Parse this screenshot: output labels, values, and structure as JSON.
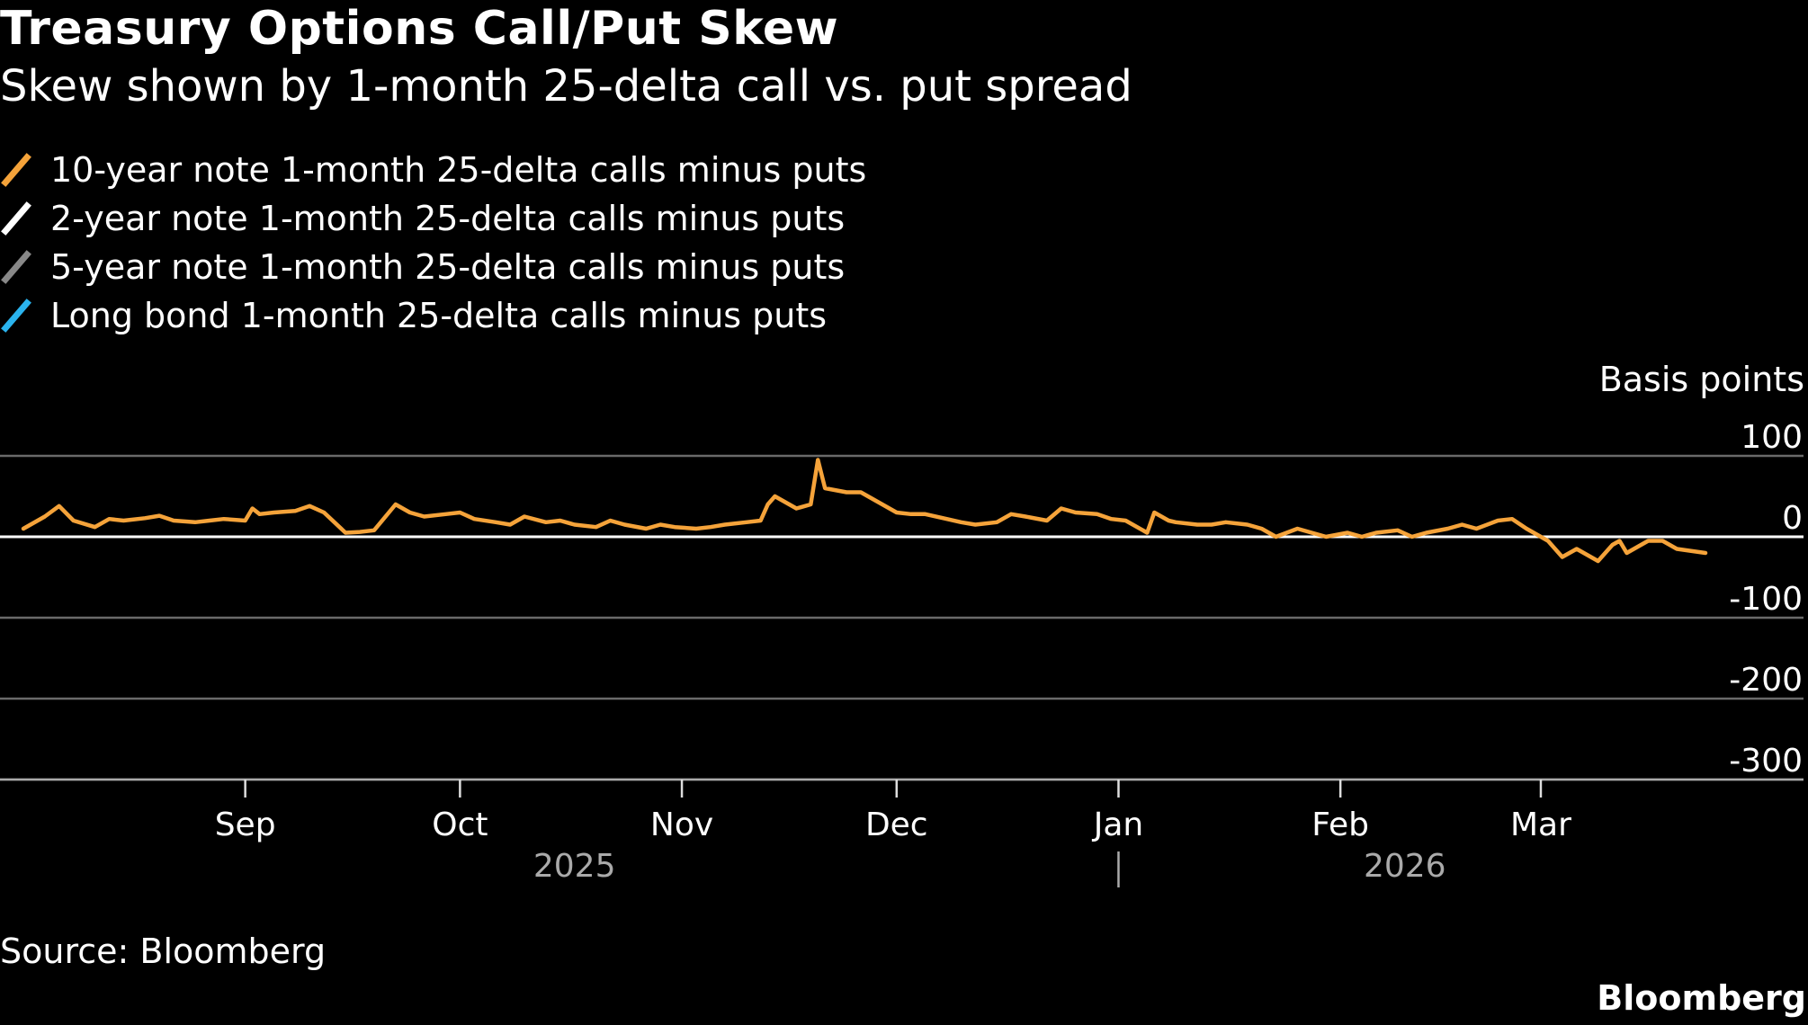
{
  "title": "Treasury Options Call/Put Skew",
  "subtitle": "Skew shown by 1-month 25-delta call vs. put spread",
  "source": "Source: Bloomberg",
  "brand": "Bloomberg",
  "chart_data": {
    "type": "line",
    "ylabel": "Basis points",
    "ylim": [
      -300,
      100
    ],
    "yticks": [
      100,
      0,
      -100,
      -200,
      -300
    ],
    "grid": true,
    "legend": "top-left",
    "x_start": "2025-07-31",
    "x_end": "2026-03-24",
    "month_ticks": [
      {
        "label": "Sep",
        "date": "2025-09-01"
      },
      {
        "label": "Oct",
        "date": "2025-10-01"
      },
      {
        "label": "Nov",
        "date": "2025-11-01"
      },
      {
        "label": "Dec",
        "date": "2025-12-01"
      },
      {
        "label": "Jan",
        "date": "2026-01-01"
      },
      {
        "label": "Feb",
        "date": "2026-02-01"
      },
      {
        "label": "Mar",
        "date": "2026-03-01"
      }
    ],
    "year_labels": [
      {
        "label": "2025",
        "date": "2025-10-17"
      },
      {
        "label": "2026",
        "date": "2026-02-10"
      }
    ],
    "year_divider_date": "2026-01-01",
    "series": [
      {
        "name": "10-year note 1-month 25-delta calls minus puts",
        "color": "#f5a33a",
        "points": [
          [
            "2025-08-01",
            10
          ],
          [
            "2025-08-04",
            25
          ],
          [
            "2025-08-06",
            38
          ],
          [
            "2025-08-08",
            20
          ],
          [
            "2025-08-11",
            12
          ],
          [
            "2025-08-13",
            22
          ],
          [
            "2025-08-15",
            20
          ],
          [
            "2025-08-18",
            23
          ],
          [
            "2025-08-20",
            26
          ],
          [
            "2025-08-22",
            20
          ],
          [
            "2025-08-25",
            18
          ],
          [
            "2025-08-27",
            20
          ],
          [
            "2025-08-29",
            22
          ],
          [
            "2025-09-01",
            20
          ],
          [
            "2025-09-02",
            35
          ],
          [
            "2025-09-03",
            28
          ],
          [
            "2025-09-05",
            30
          ],
          [
            "2025-09-08",
            32
          ],
          [
            "2025-09-10",
            38
          ],
          [
            "2025-09-12",
            30
          ],
          [
            "2025-09-15",
            5
          ],
          [
            "2025-09-17",
            6
          ],
          [
            "2025-09-19",
            8
          ],
          [
            "2025-09-22",
            40
          ],
          [
            "2025-09-24",
            30
          ],
          [
            "2025-09-26",
            25
          ],
          [
            "2025-09-29",
            28
          ],
          [
            "2025-10-01",
            30
          ],
          [
            "2025-10-03",
            22
          ],
          [
            "2025-10-06",
            18
          ],
          [
            "2025-10-08",
            15
          ],
          [
            "2025-10-10",
            25
          ],
          [
            "2025-10-13",
            18
          ],
          [
            "2025-10-15",
            20
          ],
          [
            "2025-10-17",
            15
          ],
          [
            "2025-10-20",
            12
          ],
          [
            "2025-10-22",
            20
          ],
          [
            "2025-10-24",
            15
          ],
          [
            "2025-10-27",
            10
          ],
          [
            "2025-10-29",
            15
          ],
          [
            "2025-10-31",
            12
          ],
          [
            "2025-11-03",
            10
          ],
          [
            "2025-11-05",
            12
          ],
          [
            "2025-11-07",
            15
          ],
          [
            "2025-11-10",
            18
          ],
          [
            "2025-11-12",
            20
          ],
          [
            "2025-11-13",
            40
          ],
          [
            "2025-11-14",
            50
          ],
          [
            "2025-11-17",
            35
          ],
          [
            "2025-11-19",
            40
          ],
          [
            "2025-11-20",
            95
          ],
          [
            "2025-11-21",
            60
          ],
          [
            "2025-11-24",
            55
          ],
          [
            "2025-11-26",
            55
          ],
          [
            "2025-11-28",
            45
          ],
          [
            "2025-12-01",
            30
          ],
          [
            "2025-12-03",
            28
          ],
          [
            "2025-12-05",
            28
          ],
          [
            "2025-12-08",
            22
          ],
          [
            "2025-12-10",
            18
          ],
          [
            "2025-12-12",
            15
          ],
          [
            "2025-12-15",
            18
          ],
          [
            "2025-12-17",
            28
          ],
          [
            "2025-12-19",
            25
          ],
          [
            "2025-12-22",
            20
          ],
          [
            "2025-12-24",
            35
          ],
          [
            "2025-12-26",
            30
          ],
          [
            "2025-12-29",
            28
          ],
          [
            "2025-12-31",
            22
          ],
          [
            "2026-01-02",
            20
          ],
          [
            "2026-01-05",
            5
          ],
          [
            "2026-01-06",
            30
          ],
          [
            "2026-01-08",
            20
          ],
          [
            "2026-01-09",
            18
          ],
          [
            "2026-01-12",
            15
          ],
          [
            "2026-01-14",
            15
          ],
          [
            "2026-01-16",
            18
          ],
          [
            "2026-01-19",
            15
          ],
          [
            "2026-01-21",
            10
          ],
          [
            "2026-01-23",
            0
          ],
          [
            "2026-01-26",
            10
          ],
          [
            "2026-01-28",
            5
          ],
          [
            "2026-01-30",
            0
          ],
          [
            "2026-02-02",
            5
          ],
          [
            "2026-02-04",
            0
          ],
          [
            "2026-02-06",
            5
          ],
          [
            "2026-02-09",
            8
          ],
          [
            "2026-02-11",
            0
          ],
          [
            "2026-02-13",
            5
          ],
          [
            "2026-02-16",
            10
          ],
          [
            "2026-02-18",
            15
          ],
          [
            "2026-02-20",
            10
          ],
          [
            "2026-02-23",
            20
          ],
          [
            "2026-02-25",
            22
          ],
          [
            "2026-02-27",
            10
          ],
          [
            "2026-03-02",
            -5
          ],
          [
            "2026-03-04",
            -25
          ],
          [
            "2026-03-06",
            -15
          ],
          [
            "2026-03-09",
            -30
          ],
          [
            "2026-03-11",
            -10
          ],
          [
            "2026-03-12",
            -5
          ],
          [
            "2026-03-13",
            -20
          ],
          [
            "2026-03-16",
            -5
          ],
          [
            "2026-03-18",
            -5
          ],
          [
            "2026-03-20",
            -15
          ],
          [
            "2026-03-24",
            -20
          ]
        ]
      },
      {
        "name": "2-year note 1-month 25-delta calls minus puts",
        "color": "#ffffff",
        "points": []
      },
      {
        "name": "5-year note 1-month 25-delta calls minus puts",
        "color": "#888888",
        "points": []
      },
      {
        "name": "Long bond 1-month 25-delta calls minus puts",
        "color": "#2ab3ee",
        "points": []
      }
    ]
  }
}
